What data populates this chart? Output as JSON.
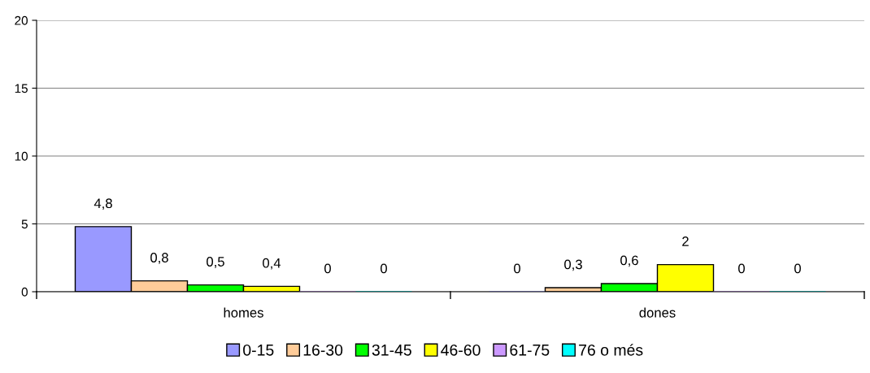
{
  "chart_data": {
    "type": "bar",
    "categories": [
      "homes",
      "dones"
    ],
    "series": [
      {
        "name": "0-15",
        "color": "#9999ff",
        "values": [
          4.8,
          0
        ],
        "value_labels": [
          "4,8",
          "0"
        ]
      },
      {
        "name": "16-30",
        "color": "#ffcc99",
        "values": [
          0.8,
          0.3
        ],
        "value_labels": [
          "0,8",
          "0,3"
        ]
      },
      {
        "name": "31-45",
        "color": "#00ff00",
        "values": [
          0.5,
          0.6
        ],
        "value_labels": [
          "0,5",
          "0,6"
        ]
      },
      {
        "name": "46-60",
        "color": "#ffff00",
        "values": [
          0.4,
          2
        ],
        "value_labels": [
          "0,4",
          "2"
        ]
      },
      {
        "name": "61-75",
        "color": "#cc99ff",
        "values": [
          0,
          0
        ],
        "value_labels": [
          "0",
          "0"
        ]
      },
      {
        "name": "76 o més",
        "color": "#00ffff",
        "values": [
          0,
          0
        ],
        "value_labels": [
          "0",
          "0"
        ]
      }
    ],
    "ylim": [
      0,
      20
    ],
    "yticks": [
      0,
      5,
      10,
      15,
      20
    ],
    "grid": "y",
    "legend": "bottom"
  }
}
